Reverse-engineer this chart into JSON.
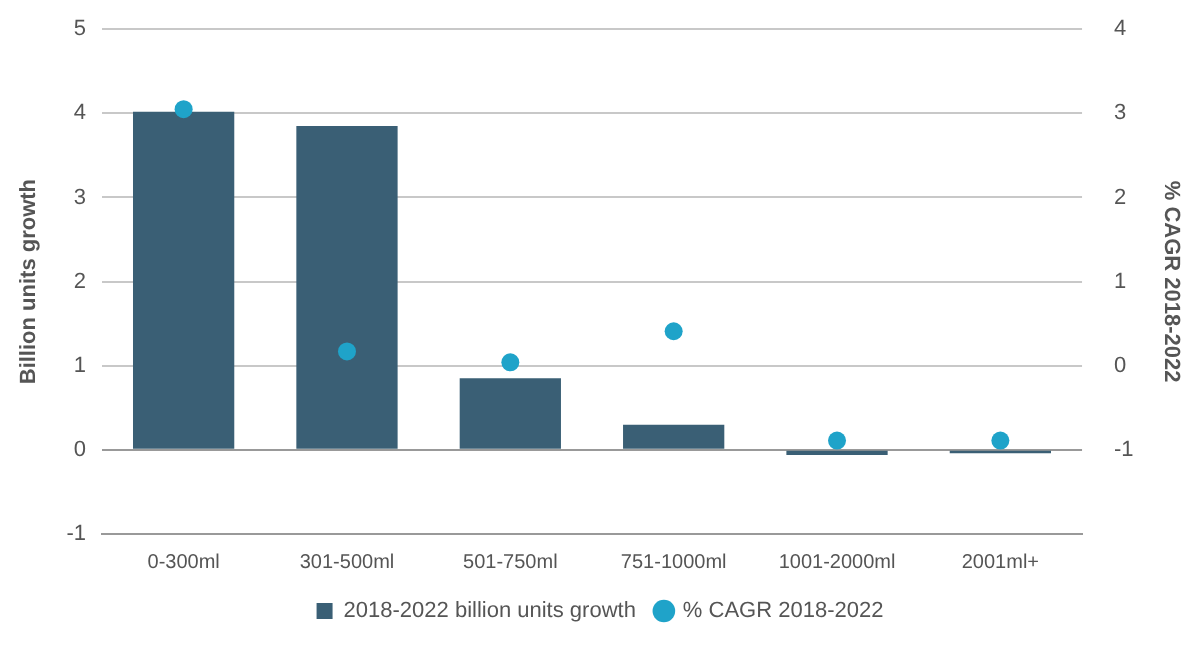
{
  "chart_data": {
    "type": "bar",
    "categories": [
      "0-300ml",
      "301-500ml",
      "501-750ml",
      "751-1000ml",
      "1001-2000ml",
      "2001ml+"
    ],
    "series": [
      {
        "name": "2018-2022 billion units growth",
        "color": "#3a5f75",
        "values": [
          4.02,
          3.85,
          0.85,
          0.3,
          -0.06,
          -0.04
        ]
      },
      {
        "name": "% CAGR 2018-2022",
        "type": "scatter",
        "axis": "y2",
        "color": "#1fa3c9",
        "values": [
          3.05,
          0.17,
          0.04,
          0.41,
          -0.89,
          -0.89
        ]
      }
    ],
    "ylabel": "Billion units growth",
    "y2label": "% CAGR 2018-2022",
    "ylim": [
      -1,
      5
    ],
    "yticks": [
      -1,
      0,
      1,
      2,
      3,
      4,
      5
    ],
    "y2lim": [
      -2,
      4
    ],
    "y2ticks": [
      -1,
      0,
      1,
      2,
      3,
      4
    ],
    "grid": "y",
    "legend": "bottom",
    "marker": "circle"
  }
}
